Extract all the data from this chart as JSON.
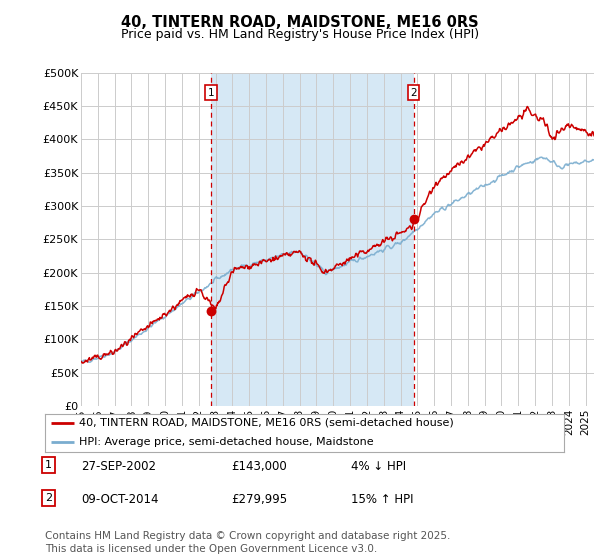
{
  "title": "40, TINTERN ROAD, MAIDSTONE, ME16 0RS",
  "subtitle": "Price paid vs. HM Land Registry's House Price Index (HPI)",
  "ylabel_ticks": [
    "£0",
    "£50K",
    "£100K",
    "£150K",
    "£200K",
    "£250K",
    "£300K",
    "£350K",
    "£400K",
    "£450K",
    "£500K"
  ],
  "ytick_values": [
    0,
    50000,
    100000,
    150000,
    200000,
    250000,
    300000,
    350000,
    400000,
    450000,
    500000
  ],
  "ylim": [
    0,
    500000
  ],
  "xlim_start": 1995.0,
  "xlim_end": 2025.5,
  "vline1_x": 2002.75,
  "vline2_x": 2014.77,
  "vline1_label": "1",
  "vline2_label": "2",
  "sale1_price_val": 143000,
  "sale2_price_val": 279995,
  "sale1_date": "27-SEP-2002",
  "sale1_price": "£143,000",
  "sale1_note": "4% ↓ HPI",
  "sale2_date": "09-OCT-2014",
  "sale2_price": "£279,995",
  "sale2_note": "15% ↑ HPI",
  "legend_line1": "40, TINTERN ROAD, MAIDSTONE, ME16 0RS (semi-detached house)",
  "legend_line2": "HPI: Average price, semi-detached house, Maidstone",
  "footer": "Contains HM Land Registry data © Crown copyright and database right 2025.\nThis data is licensed under the Open Government Licence v3.0.",
  "line_color_red": "#cc0000",
  "line_color_blue": "#7aadcf",
  "vline_color": "#cc0000",
  "shade_color": "#d6e8f5",
  "plot_bg_color": "#ffffff",
  "grid_color": "#cccccc",
  "title_fontsize": 10.5,
  "subtitle_fontsize": 9,
  "tick_fontsize": 8,
  "legend_fontsize": 8.5,
  "annotation_fontsize": 9,
  "footer_fontsize": 7.5
}
